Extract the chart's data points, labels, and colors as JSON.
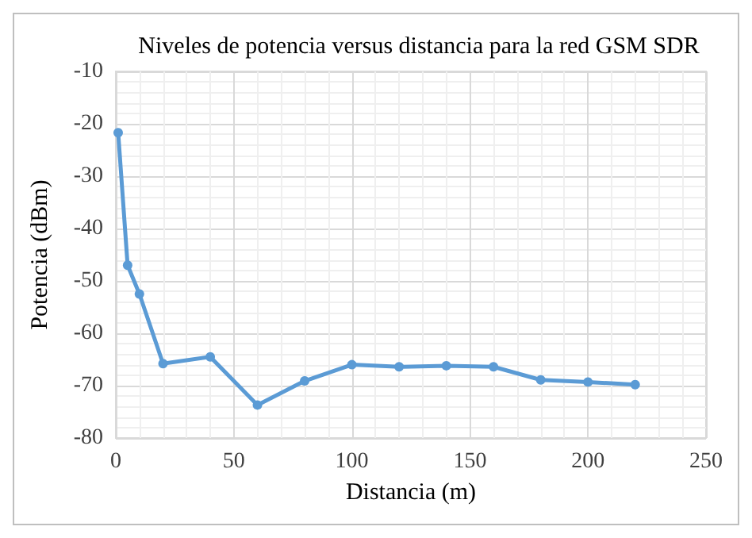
{
  "chart_data": {
    "type": "line",
    "title": "Niveles de potencia versus distancia para la red GSM SDR",
    "xlabel": "Distancia (m)",
    "ylabel": "Potencia (dBm)",
    "x": [
      1,
      5,
      10,
      20,
      40,
      60,
      80,
      100,
      120,
      140,
      160,
      180,
      200,
      220
    ],
    "series": [
      {
        "color": "#5b9bd5",
        "values": [
          -21.7,
          -47,
          -52.5,
          -65.8,
          -64.5,
          -73.7,
          -69.1,
          -66,
          -66.4,
          -66.2,
          -66.4,
          -68.9,
          -69.3,
          -69.8
        ]
      }
    ],
    "xlim": [
      0,
      250
    ],
    "xticks": [
      0,
      50,
      100,
      150,
      200,
      250
    ],
    "ylim": [
      -80,
      -10
    ],
    "yticks": [
      -80,
      -70,
      -60,
      -50,
      -40,
      -30,
      -20,
      -10
    ],
    "grid": true,
    "marker": "circle",
    "line_style": "solid"
  }
}
